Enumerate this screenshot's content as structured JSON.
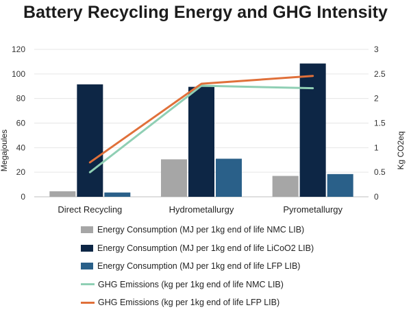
{
  "chart_data": {
    "type": "bar",
    "title": "Battery Recycling Energy and GHG Intensity",
    "categories": [
      "Direct Recycling",
      "Hydrometallurgy",
      "Pyrometallurgy"
    ],
    "ylabel": "Megajoules",
    "y2label": "Kg CO2eq",
    "ylim": [
      0,
      120
    ],
    "y2lim": [
      0,
      3
    ],
    "yticks": [
      "0",
      "20",
      "40",
      "60",
      "80",
      "100",
      "120"
    ],
    "y2ticks": [
      "0",
      "0.5",
      "1",
      "1.5",
      "2",
      "2.5",
      "3"
    ],
    "series": [
      {
        "name": "Energy Consumption (MJ per 1kg end of life NMC LIB)",
        "kind": "bar",
        "axis": "left",
        "color": "#a6a6a6",
        "values": [
          4.5,
          30.5,
          17
        ]
      },
      {
        "name": "Energy Consumption (MJ per 1kg end of life LiCoO2 LIB)",
        "kind": "bar",
        "axis": "left",
        "color": "#0d2645",
        "values": [
          91.5,
          89.5,
          108.5
        ]
      },
      {
        "name": "Energy Consumption (MJ per 1kg end of life LFP LIB)",
        "kind": "bar",
        "axis": "left",
        "color": "#2a6089",
        "values": [
          3.5,
          31,
          18.5
        ]
      },
      {
        "name": "GHG Emissions (kg per 1kg end of life NMC LIB)",
        "kind": "line",
        "axis": "right",
        "color": "#8fcfb4",
        "values": [
          0.5,
          2.26,
          2.21
        ]
      },
      {
        "name": "GHG Emissions (kg per 1kg end of life LFP LIB)",
        "kind": "line",
        "axis": "right",
        "color": "#e0703a",
        "values": [
          0.7,
          2.3,
          2.46
        ]
      }
    ],
    "legend_position": "bottom",
    "grid": true
  }
}
